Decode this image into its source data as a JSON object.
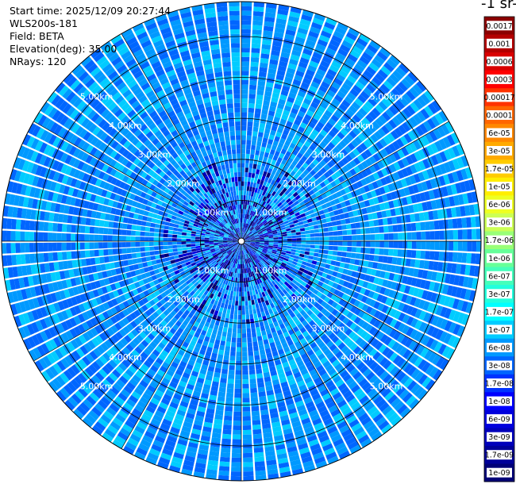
{
  "header": {
    "start_time": "Start time: 2025/12/09 20:27:44",
    "instrument": "WLS200s-181",
    "field": "Field: BETA",
    "elevation": "Elevation(deg): 35.00",
    "nrays": "NRays: 120"
  },
  "colorbar": {
    "unit_title": "-1 sr-",
    "labels": [
      "0.0017",
      "0.001",
      "0.0006",
      "0.0003",
      "0.00017",
      "0.0001",
      "6e-05",
      "3e-05",
      "1.7e-05",
      "1e-05",
      "6e-06",
      "3e-06",
      "1.7e-06",
      "1e-06",
      "6e-07",
      "3e-07",
      "1.7e-07",
      "1e-07",
      "6e-08",
      "3e-08",
      "1.7e-08",
      "1e-08",
      "6e-09",
      "3e-09",
      "1.7e-09",
      "1e-09"
    ],
    "colors": [
      "#8b0000",
      "#b30000",
      "#d90000",
      "#ff0000",
      "#ff3300",
      "#ff6600",
      "#ff8800",
      "#ffaa00",
      "#ffcc00",
      "#ffee00",
      "#eeff22",
      "#ccff55",
      "#99ff77",
      "#66ff99",
      "#44ffbb",
      "#22ffdd",
      "#00ffff",
      "#00ccff",
      "#0099ff",
      "#0066ff",
      "#0033ff",
      "#0000ff",
      "#0000dd",
      "#0000bb",
      "#000099",
      "#000077"
    ]
  },
  "chart_data": {
    "type": "polar-ppi",
    "field": "BETA",
    "elevation_deg": 35.0,
    "n_rays": 120,
    "range_rings_km": [
      1,
      2,
      3,
      4,
      5
    ],
    "ring_labels": [
      "1.00km",
      "2.00km",
      "3.00km",
      "4.00km",
      "5.00km"
    ],
    "max_range_km": 5.85,
    "value_scale": "log",
    "value_range": [
      1e-09,
      0.0017
    ],
    "dominant_value_range": [
      3e-08,
      1e-07
    ],
    "near_center_value_range": [
      1e-09,
      1e-08
    ]
  }
}
